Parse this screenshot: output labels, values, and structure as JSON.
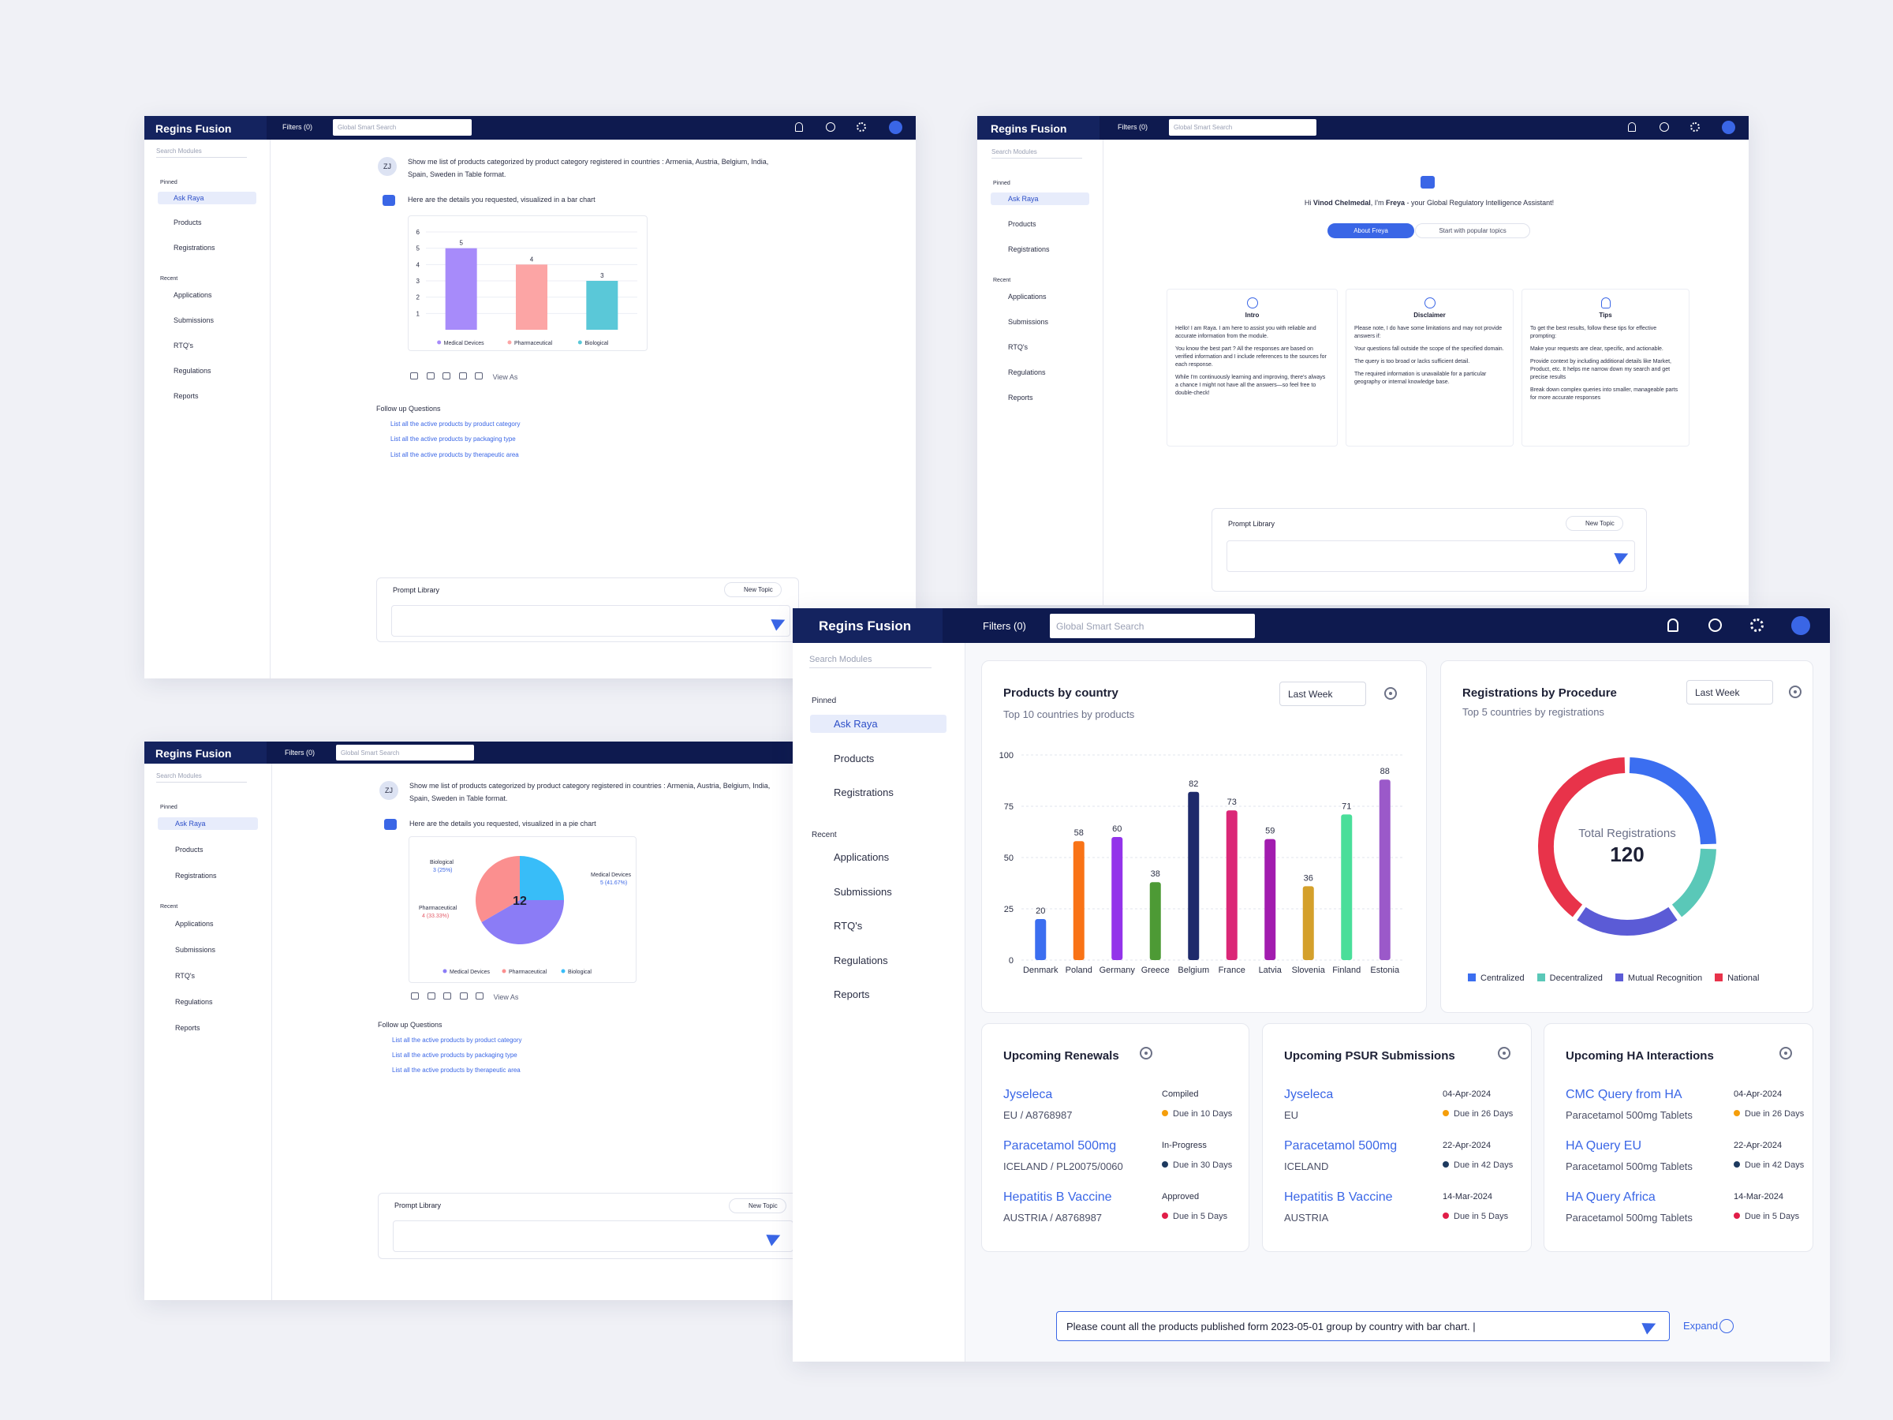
{
  "app": {
    "brand": "Regins Fusion",
    "filters": "Filters (0)",
    "search_placeholder": "Global Smart Search"
  },
  "sidebar": {
    "search": "Search Modules",
    "pinned": "Pinned",
    "pinned_items": [
      "Ask Raya",
      "Products",
      "Registrations"
    ],
    "recent": "Recent",
    "recent_items": [
      "Applications",
      "Submissions",
      "RTQ's",
      "Regulations",
      "Reports"
    ]
  },
  "chat": {
    "avatar": "ZJ",
    "question": "Show me list of products categorized by product category registered in countries : Armenia,  Austria, Belgium, India, Spain, Sweden in Table format.",
    "answer_bar": "Here are the details you requested, visualized in a bar chart",
    "answer_pie": "Here are the details you requested, visualized in a pie chart",
    "view_as": "View As",
    "followup_title": "Follow up Questions",
    "followups": [
      "List all the active products by product category",
      "List all the active products by packaging type",
      "List all the active products by therapeutic area"
    ],
    "prompt_library": "Prompt Library",
    "new_topic": "New Topic"
  },
  "mini_bar_chart": {
    "type": "bar",
    "categories": [
      "Medical Devices",
      "Pharmaceutical",
      "Biological"
    ],
    "values": [
      5,
      4,
      3
    ],
    "ylim": [
      0,
      6
    ],
    "yticks": [
      "6",
      "5",
      "4",
      "3",
      "2",
      "1"
    ],
    "colors": [
      "#a78bfa",
      "#fca5a5",
      "#5ac8d8"
    ]
  },
  "mini_pie_chart": {
    "type": "pie",
    "total": "12",
    "slices": [
      {
        "name": "Biological",
        "value": 3,
        "label": "3 (25%)",
        "color": "#38bdf8"
      },
      {
        "name": "Medical Devices",
        "value": 5,
        "label": "5 (41.67%)",
        "color": "#8b7cf6"
      },
      {
        "name": "Pharmaceutical",
        "value": 4,
        "label": "4 (33.33%)",
        "color": "#fb8f8f"
      }
    ],
    "legend": [
      "Medical Devices",
      "Pharmaceutical",
      "Biological"
    ]
  },
  "welcome": {
    "greeting_pre": "Hi ",
    "user": "Vinod Chelmedal",
    "greeting_mid": ", I'm ",
    "assistant": "Freya",
    "greeting_post": " - your Global Regulatory Intelligence Assistant!",
    "tab_active": "About Freya",
    "tab_other": "Start with popular topics",
    "cards": [
      {
        "title": "Intro",
        "paras": [
          "Hello! I am Raya. I am here to assist you with reliable and accurate information from the module.",
          "You know the best part ? All the responses are based on verified information and I include references to the sources for each response.",
          "While I'm continuously learning and improving, there's always a chance I might not have all the answers—so feel free to double-check!"
        ]
      },
      {
        "title": "Disclaimer",
        "paras": [
          "Please note, I do have some limitations and may not provide answers if:",
          "Your questions fall outside the scope of the specified domain.",
          "The query is too broad or lacks sufficient detail.",
          "The required information is unavailable for a particular geography or internal knowledge base."
        ]
      },
      {
        "title": "Tips",
        "paras": [
          "To get the best results, follow these tips for effective prompting:",
          "Make your requests are clear, specific, and actionable.",
          "Provide context by including additional details like Market, Product, etc. It helps me narrow down my search and get precise results",
          "Break down complex queries into smaller, manageable parts for more accurate responses"
        ]
      }
    ]
  },
  "dashboard": {
    "range_label": "Last Week",
    "products_title": "Products by country",
    "products_sub": "Top 10 countries by products",
    "reg_title": "Registrations by Procedure",
    "reg_sub": "Top 5 countries by registrations",
    "donut_label": "Total Registrations",
    "donut_total": "120",
    "renewals_title": "Upcoming Renewals",
    "psur_title": "Upcoming PSUR Submissions",
    "ha_title": "Upcoming HA Interactions",
    "renewals": [
      {
        "title": "Jyseleca",
        "sub": "EU / A8768987",
        "status": "Compiled",
        "due": "Due in 10 Days",
        "color": "#f59e0b"
      },
      {
        "title": "Paracetamol 500mg",
        "sub": "ICELAND / PL20075/0060",
        "status": "In-Progress",
        "due": "Due in 30 Days",
        "color": "#1e3a5f"
      },
      {
        "title": "Hepatitis B Vaccine",
        "sub": "AUSTRIA / A8768987",
        "status": "Approved",
        "due": "Due in 5 Days",
        "color": "#e11d48"
      }
    ],
    "psur": [
      {
        "title": "Jyseleca",
        "sub": "EU",
        "status": "04-Apr-2024",
        "due": "Due in 26 Days",
        "color": "#f59e0b"
      },
      {
        "title": "Paracetamol 500mg",
        "sub": "ICELAND",
        "status": "22-Apr-2024",
        "due": "Due in 42 Days",
        "color": "#1e3a5f"
      },
      {
        "title": "Hepatitis B Vaccine",
        "sub": "AUSTRIA",
        "status": "14-Mar-2024",
        "due": "Due in 5 Days",
        "color": "#e11d48"
      }
    ],
    "ha": [
      {
        "title": "CMC Query from HA",
        "sub": "Paracetamol 500mg Tablets",
        "status": "04-Apr-2024",
        "due": "Due in 26 Days",
        "color": "#f59e0b"
      },
      {
        "title": "HA Query EU",
        "sub": "Paracetamol 500mg Tablets",
        "status": "22-Apr-2024",
        "due": "Due in 42 Days",
        "color": "#1e3a5f"
      },
      {
        "title": "HA Query Africa",
        "sub": "Paracetamol 500mg Tablets",
        "status": "14-Mar-2024",
        "due": "Due in 5 Days",
        "color": "#e11d48"
      }
    ],
    "prompt_value": "Please count all the products published form 2023-05-01 group by country with bar chart. |",
    "expand": "Expand"
  },
  "chart_data": [
    {
      "type": "bar",
      "title": "Products by country",
      "categories": [
        "Denmark",
        "Poland",
        "Germany",
        "Greece",
        "Belgium",
        "France",
        "Latvia",
        "Slovenia",
        "Finland",
        "Estonia"
      ],
      "values": [
        20,
        58,
        60,
        38,
        82,
        73,
        59,
        36,
        71,
        88
      ],
      "colors": [
        "#3b6ef0",
        "#f97316",
        "#9333ea",
        "#4d9a35",
        "#1e2a6b",
        "#db2777",
        "#a21caf",
        "#d4a02b",
        "#4ade9a",
        "#9b59c9"
      ],
      "ylim": [
        0,
        100
      ],
      "yticks": [
        "0",
        "25",
        "50",
        "75",
        "100"
      ]
    },
    {
      "type": "pie",
      "title": "Registrations by Procedure",
      "series": [
        {
          "name": "Centralized",
          "value": 30,
          "color": "#3b6ef0"
        },
        {
          "name": "Decentralized",
          "value": 18,
          "color": "#5ac8b8"
        },
        {
          "name": "Mutual Recognition",
          "value": 24,
          "color": "#5b5bd6"
        },
        {
          "name": "National",
          "value": 48,
          "color": "#e8334a"
        }
      ],
      "total": "120"
    }
  ]
}
